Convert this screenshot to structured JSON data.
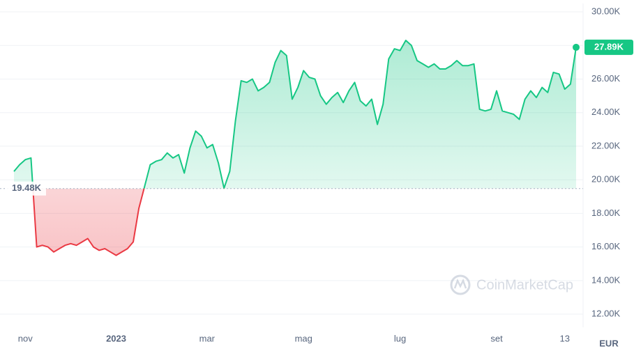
{
  "chart_data": {
    "type": "line",
    "categories": [
      null,
      null,
      "nov",
      null,
      null,
      null,
      null,
      null,
      null,
      null,
      null,
      null,
      null,
      null,
      null,
      null,
      null,
      null,
      "2023",
      null,
      null,
      null,
      null,
      null,
      null,
      null,
      null,
      null,
      null,
      null,
      null,
      null,
      null,
      null,
      "mar",
      null,
      null,
      null,
      null,
      null,
      null,
      null,
      null,
      null,
      null,
      null,
      null,
      null,
      null,
      null,
      null,
      "mag",
      null,
      null,
      null,
      null,
      null,
      null,
      null,
      null,
      null,
      null,
      null,
      null,
      null,
      null,
      null,
      null,
      "lug",
      null,
      null,
      null,
      null,
      null,
      null,
      null,
      null,
      null,
      null,
      null,
      null,
      null,
      null,
      null,
      null,
      "set",
      null,
      null,
      null,
      null,
      null,
      null,
      null,
      null,
      null,
      null,
      null,
      "13",
      null,
      null
    ],
    "values": [
      20500,
      20900,
      21200,
      21300,
      16000,
      16100,
      16000,
      15700,
      15900,
      16100,
      16200,
      16100,
      16300,
      16500,
      16000,
      15800,
      15900,
      15700,
      15500,
      15700,
      15900,
      16300,
      18300,
      19600,
      20900,
      21100,
      21200,
      21600,
      21300,
      21500,
      20400,
      21900,
      22900,
      22600,
      21900,
      22100,
      21000,
      19500,
      20500,
      23500,
      25900,
      25800,
      26000,
      25300,
      25500,
      25800,
      27000,
      27700,
      27400,
      24800,
      25500,
      26500,
      26100,
      26000,
      25000,
      24500,
      24900,
      25200,
      24600,
      25300,
      25800,
      24700,
      24400,
      24800,
      23300,
      24500,
      27200,
      27800,
      27700,
      28300,
      28000,
      27100,
      26900,
      26700,
      26900,
      26600,
      26600,
      26800,
      27100,
      26800,
      26800,
      26900,
      24200,
      24100,
      24200,
      25300,
      24100,
      24000,
      23900,
      23600,
      24800,
      25300,
      24900,
      25500,
      25200,
      26400,
      26300,
      25400,
      25700,
      27890
    ],
    "last_label": "27.89K",
    "baseline": {
      "value": 19480,
      "label": "19.48K"
    },
    "colors": {
      "above": "#16c784",
      "below": "#ea3943"
    },
    "ylim": [
      11400,
      30500
    ],
    "yticks": [
      {
        "value": 12000,
        "label": "12.00K"
      },
      {
        "value": 14000,
        "label": "14.00K"
      },
      {
        "value": 16000,
        "label": "16.00K"
      },
      {
        "value": 18000,
        "label": "18.00K"
      },
      {
        "value": 20000,
        "label": "20.00K"
      },
      {
        "value": 22000,
        "label": "22.00K"
      },
      {
        "value": 24000,
        "label": "24.00K"
      },
      {
        "value": 26000,
        "label": "26.00K"
      },
      {
        "value": 28000,
        "label": "28.00K"
      },
      {
        "value": 30000,
        "label": "30.00K"
      }
    ],
    "grid": true,
    "currency": "EUR",
    "watermark": "CoinMarketCap"
  }
}
